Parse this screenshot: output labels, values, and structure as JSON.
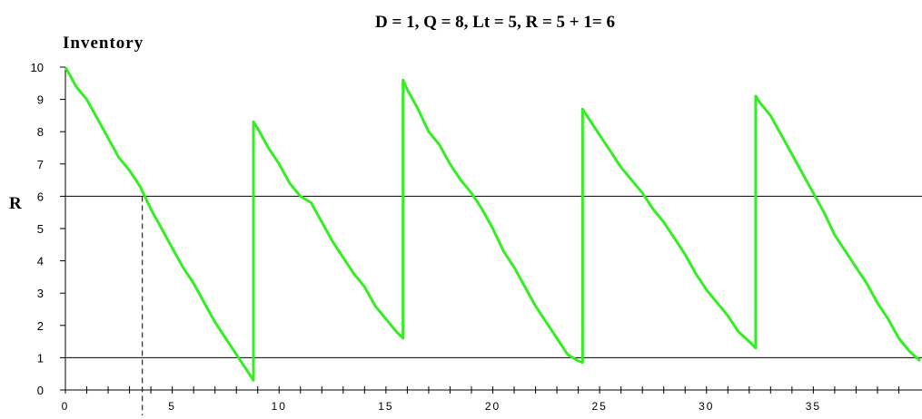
{
  "chart_data": {
    "type": "line",
    "title": "D = 1, Q = 8, Lt = 5, R =  5 + 1= 6",
    "ylabel": "Inventory",
    "reorder_label": "R",
    "xlim": [
      0,
      40
    ],
    "ylim": [
      0,
      10
    ],
    "x_ticks": [
      0,
      5,
      10,
      15,
      20,
      25,
      30,
      35
    ],
    "x_minor_step": 1,
    "y_ticks": [
      0,
      1,
      2,
      3,
      4,
      5,
      6,
      7,
      8,
      9,
      10
    ],
    "reference_lines": [
      {
        "y": 6
      },
      {
        "y": 1
      }
    ],
    "reorder_marker_x": 3.6,
    "line_color": "#33ee22",
    "series": [
      {
        "x": [
          0,
          0.5,
          1,
          1.5,
          2,
          2.5,
          3,
          3.5,
          4,
          4.5,
          5,
          5.5,
          6,
          6.5,
          7,
          7.5,
          8,
          8.5,
          8.8,
          8.8,
          9,
          9.5,
          10,
          10.5,
          11,
          11.5,
          12,
          12.5,
          13,
          13.5,
          14,
          14.5,
          15,
          15.5,
          15.8,
          15.8,
          16,
          16.5,
          17,
          17.5,
          18,
          18.5,
          19,
          19.5,
          20,
          20.5,
          21,
          21.5,
          22,
          22.5,
          23,
          23.5,
          24,
          24.2,
          24.2,
          24.5,
          25,
          25.5,
          26,
          26.5,
          27,
          27.5,
          28,
          28.5,
          29,
          29.5,
          30,
          30.5,
          31,
          31.5,
          32,
          32.3,
          32.3,
          32.5,
          33,
          33.5,
          34,
          34.5,
          35,
          35.5,
          36,
          36.5,
          37,
          37.5,
          38,
          38.5,
          39,
          39.5,
          40
        ],
        "y": [
          10,
          9.4,
          9.0,
          8.4,
          7.8,
          7.2,
          6.8,
          6.3,
          5.6,
          5.0,
          4.4,
          3.8,
          3.3,
          2.7,
          2.1,
          1.6,
          1.1,
          0.6,
          0.3,
          8.3,
          8.1,
          7.5,
          7.0,
          6.4,
          6.0,
          5.8,
          5.2,
          4.6,
          4.1,
          3.6,
          3.2,
          2.6,
          2.2,
          1.8,
          1.6,
          9.6,
          9.3,
          8.7,
          8.0,
          7.6,
          7.0,
          6.5,
          6.1,
          5.6,
          5.0,
          4.3,
          3.8,
          3.2,
          2.6,
          2.1,
          1.6,
          1.1,
          0.9,
          0.85,
          8.7,
          8.4,
          7.9,
          7.4,
          6.9,
          6.5,
          6.1,
          5.6,
          5.2,
          4.7,
          4.2,
          3.6,
          3.1,
          2.7,
          2.3,
          1.8,
          1.5,
          1.3,
          9.1,
          8.9,
          8.5,
          7.9,
          7.3,
          6.7,
          6.1,
          5.5,
          4.8,
          4.3,
          3.8,
          3.3,
          2.7,
          2.2,
          1.6,
          1.2,
          0.9
        ]
      }
    ]
  }
}
